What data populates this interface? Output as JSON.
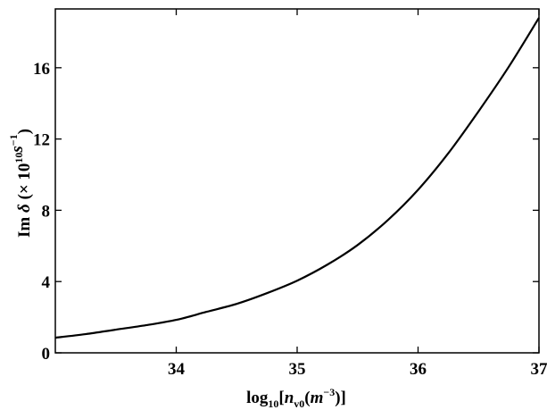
{
  "chart_data": {
    "type": "line",
    "title": "",
    "xlabel": {
      "base": "log",
      "sub": "10",
      "open": "[",
      "var": "n",
      "var_sub": "v0",
      "paren_open": "(",
      "unit": "m",
      "unit_sup": "−3",
      "close": ")]"
    },
    "ylabel": {
      "im": "Im ",
      "delta": "δ",
      "open": " (× 10",
      "exp": "10",
      "unit": "s",
      "unit_sup": "−1",
      "close": ")"
    },
    "xlim": [
      33,
      37
    ],
    "ylim": [
      0,
      19.3
    ],
    "x_ticks": [
      {
        "value": 34,
        "label": "34"
      },
      {
        "value": 35,
        "label": "35"
      },
      {
        "value": 36,
        "label": "36"
      },
      {
        "value": 37,
        "label": "37"
      }
    ],
    "y_ticks": [
      {
        "value": 0,
        "label": "0"
      },
      {
        "value": 4,
        "label": "4"
      },
      {
        "value": 8,
        "label": "8"
      },
      {
        "value": 12,
        "label": "12"
      },
      {
        "value": 16,
        "label": "16"
      }
    ],
    "series": [
      {
        "color": "#000000",
        "x": [
          33.0,
          33.25,
          33.5,
          33.75,
          34.0,
          34.25,
          34.5,
          34.75,
          35.0,
          35.25,
          35.5,
          35.75,
          36.0,
          36.25,
          36.5,
          36.75,
          37.0
        ],
        "y": [
          0.85,
          1.05,
          1.3,
          1.55,
          1.85,
          2.3,
          2.75,
          3.35,
          4.05,
          4.95,
          6.05,
          7.45,
          9.15,
          11.2,
          13.55,
          16.05,
          18.8
        ]
      }
    ],
    "grid": false,
    "legend": "none"
  }
}
